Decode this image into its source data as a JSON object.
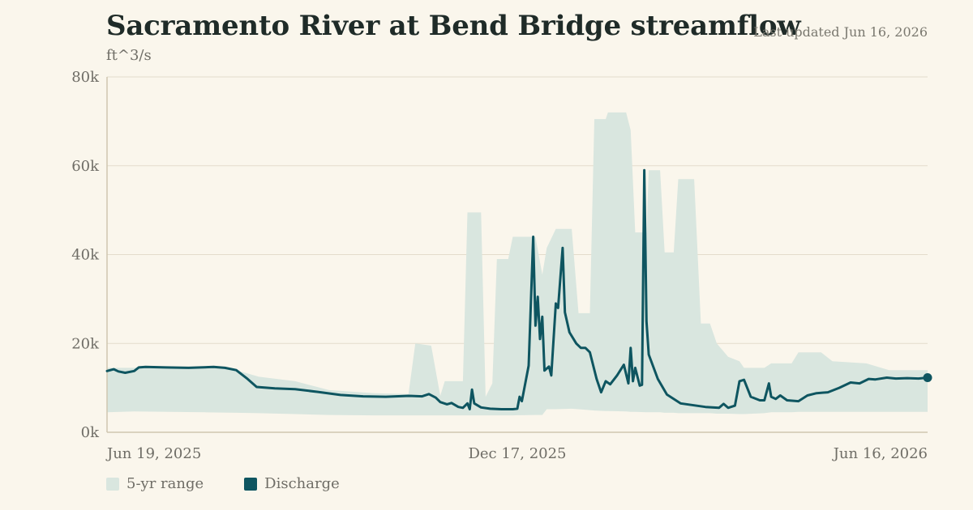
{
  "header": {
    "title": "Sacramento River at Bend Bridge streamflow",
    "updated": "Last updated Jun 16, 2026",
    "unit": "ft^3/s"
  },
  "colors": {
    "band": "#d9e6df",
    "line": "#0e5560",
    "grid": "#e3dccb",
    "axis": "#cfc6b0",
    "text": "#6f6d66",
    "bg": "#faf6ec"
  },
  "legend": {
    "range_label": "5-yr range",
    "discharge_label": "Discharge"
  },
  "chart_data": {
    "type": "area",
    "title": "Sacramento River at Bend Bridge streamflow",
    "ylabel": "ft^3/s",
    "xlabel": "",
    "x_range": [
      "2025-06-19",
      "2026-06-16"
    ],
    "ylim": [
      0,
      80000
    ],
    "yticks": [
      0,
      20000,
      40000,
      60000,
      80000
    ],
    "ytick_labels": [
      "0k",
      "20k",
      "40k",
      "60k",
      "80k"
    ],
    "xticks": [
      "2025-06-19",
      "2025-12-17",
      "2026-06-16"
    ],
    "xtick_labels": [
      "Jun 19, 2025",
      "Dec 17, 2025",
      "Jun 16, 2026"
    ],
    "grid": "horizontal",
    "legend_position": "bottom-left",
    "series": [
      {
        "name": "5-yr range",
        "kind": "band",
        "points": [
          [
            "2025-06-19",
            4500,
            14500
          ],
          [
            "2025-07-01",
            4700,
            14500
          ],
          [
            "2025-08-01",
            4500,
            14800
          ],
          [
            "2025-08-15",
            4400,
            14000
          ],
          [
            "2025-08-25",
            4300,
            12500
          ],
          [
            "2025-09-10",
            4100,
            11500
          ],
          [
            "2025-09-25",
            3900,
            9500
          ],
          [
            "2025-10-15",
            3800,
            8800
          ],
          [
            "2025-10-30",
            3800,
            8600
          ],
          [
            "2025-11-02",
            3800,
            20000
          ],
          [
            "2025-11-09",
            3800,
            19500
          ],
          [
            "2025-11-13",
            3800,
            8200
          ],
          [
            "2025-11-15",
            3800,
            11500
          ],
          [
            "2025-11-23",
            3800,
            11500
          ],
          [
            "2025-11-25",
            3800,
            49500
          ],
          [
            "2025-12-01",
            3800,
            49500
          ],
          [
            "2025-12-03",
            3800,
            8000
          ],
          [
            "2025-12-06",
            3800,
            11000
          ],
          [
            "2025-12-08",
            3800,
            39000
          ],
          [
            "2025-12-13",
            3800,
            39000
          ],
          [
            "2025-12-15",
            3800,
            44000
          ],
          [
            "2025-12-25",
            3900,
            44000
          ],
          [
            "2025-12-28",
            3900,
            35500
          ],
          [
            "2025-12-30",
            5200,
            41500
          ],
          [
            "2026-01-03",
            5200,
            45800
          ],
          [
            "2026-01-10",
            5300,
            45800
          ],
          [
            "2026-01-13",
            5200,
            26800
          ],
          [
            "2026-01-18",
            5000,
            26800
          ],
          [
            "2026-01-20",
            4900,
            70500
          ],
          [
            "2026-01-25",
            4800,
            70500
          ],
          [
            "2026-01-26",
            4800,
            72000
          ],
          [
            "2026-02-03",
            4700,
            72000
          ],
          [
            "2026-02-05",
            4600,
            68000
          ],
          [
            "2026-02-07",
            4600,
            45000
          ],
          [
            "2026-02-12",
            4500,
            45000
          ],
          [
            "2026-02-13",
            4500,
            59000
          ],
          [
            "2026-02-18",
            4500,
            59000
          ],
          [
            "2026-02-20",
            4400,
            40500
          ],
          [
            "2026-02-24",
            4400,
            40500
          ],
          [
            "2026-02-26",
            4300,
            57000
          ],
          [
            "2026-03-05",
            4300,
            57000
          ],
          [
            "2026-03-08",
            4300,
            24500
          ],
          [
            "2026-03-12",
            4300,
            24500
          ],
          [
            "2026-03-15",
            4200,
            20000
          ],
          [
            "2026-03-20",
            4200,
            17000
          ],
          [
            "2026-03-25",
            4100,
            16000
          ],
          [
            "2026-03-27",
            4100,
            14500
          ],
          [
            "2026-04-05",
            4300,
            14500
          ],
          [
            "2026-04-08",
            4500,
            15500
          ],
          [
            "2026-04-17",
            4500,
            15500
          ],
          [
            "2026-04-20",
            4600,
            18000
          ],
          [
            "2026-04-30",
            4600,
            18000
          ],
          [
            "2026-05-05",
            4600,
            16000
          ],
          [
            "2026-05-20",
            4600,
            15500
          ],
          [
            "2026-05-30",
            4600,
            14000
          ],
          [
            "2026-06-16",
            4600,
            14000
          ]
        ]
      },
      {
        "name": "Discharge",
        "kind": "line",
        "points": [
          [
            "2025-06-19",
            13800
          ],
          [
            "2025-06-22",
            14200
          ],
          [
            "2025-06-24",
            13700
          ],
          [
            "2025-06-27",
            13400
          ],
          [
            "2025-07-01",
            13800
          ],
          [
            "2025-07-03",
            14600
          ],
          [
            "2025-07-06",
            14700
          ],
          [
            "2025-07-15",
            14600
          ],
          [
            "2025-07-25",
            14500
          ],
          [
            "2025-08-05",
            14700
          ],
          [
            "2025-08-10",
            14500
          ],
          [
            "2025-08-15",
            14000
          ],
          [
            "2025-08-20",
            12000
          ],
          [
            "2025-08-24",
            10200
          ],
          [
            "2025-09-01",
            9900
          ],
          [
            "2025-09-10",
            9700
          ],
          [
            "2025-09-20",
            9100
          ],
          [
            "2025-09-30",
            8400
          ],
          [
            "2025-10-10",
            8100
          ],
          [
            "2025-10-20",
            8000
          ],
          [
            "2025-10-30",
            8200
          ],
          [
            "2025-11-05",
            8100
          ],
          [
            "2025-11-08",
            8600
          ],
          [
            "2025-11-11",
            7800
          ],
          [
            "2025-11-13",
            6800
          ],
          [
            "2025-11-16",
            6300
          ],
          [
            "2025-11-18",
            6600
          ],
          [
            "2025-11-21",
            5700
          ],
          [
            "2025-11-23",
            5500
          ],
          [
            "2025-11-25",
            6500
          ],
          [
            "2025-11-26",
            5200
          ],
          [
            "2025-11-27",
            9600
          ],
          [
            "2025-11-28",
            6500
          ],
          [
            "2025-12-01",
            5600
          ],
          [
            "2025-12-05",
            5300
          ],
          [
            "2025-12-10",
            5200
          ],
          [
            "2025-12-15",
            5200
          ],
          [
            "2025-12-17",
            5300
          ],
          [
            "2025-12-18",
            8000
          ],
          [
            "2025-12-19",
            7000
          ],
          [
            "2025-12-22",
            15000
          ],
          [
            "2025-12-24",
            44000
          ],
          [
            "2025-12-25",
            24000
          ],
          [
            "2025-12-26",
            30500
          ],
          [
            "2025-12-27",
            21000
          ],
          [
            "2025-12-28",
            26000
          ],
          [
            "2025-12-29",
            13900
          ],
          [
            "2025-12-31",
            14800
          ],
          [
            "2026-01-01",
            12800
          ],
          [
            "2026-01-03",
            29000
          ],
          [
            "2026-01-04",
            28000
          ],
          [
            "2026-01-06",
            41500
          ],
          [
            "2026-01-07",
            27000
          ],
          [
            "2026-01-09",
            22500
          ],
          [
            "2026-01-12",
            20000
          ],
          [
            "2026-01-14",
            19000
          ],
          [
            "2026-01-16",
            19000
          ],
          [
            "2026-01-18",
            18000
          ],
          [
            "2026-01-21",
            12000
          ],
          [
            "2026-01-23",
            9000
          ],
          [
            "2026-01-25",
            11500
          ],
          [
            "2026-01-27",
            10800
          ],
          [
            "2026-01-30",
            12800
          ],
          [
            "2026-02-02",
            15200
          ],
          [
            "2026-02-04",
            11000
          ],
          [
            "2026-02-05",
            19000
          ],
          [
            "2026-02-06",
            11500
          ],
          [
            "2026-02-07",
            14500
          ],
          [
            "2026-02-09",
            10500
          ],
          [
            "2026-02-10",
            10700
          ],
          [
            "2026-02-11",
            59000
          ],
          [
            "2026-02-12",
            25000
          ],
          [
            "2026-02-13",
            17500
          ],
          [
            "2026-02-17",
            12000
          ],
          [
            "2026-02-21",
            8500
          ],
          [
            "2026-02-27",
            6500
          ],
          [
            "2026-03-10",
            5700
          ],
          [
            "2026-03-16",
            5500
          ],
          [
            "2026-03-18",
            6400
          ],
          [
            "2026-03-20",
            5500
          ],
          [
            "2026-03-23",
            6000
          ],
          [
            "2026-03-25",
            11500
          ],
          [
            "2026-03-27",
            11800
          ],
          [
            "2026-03-30",
            8000
          ],
          [
            "2026-04-03",
            7200
          ],
          [
            "2026-04-05",
            7200
          ],
          [
            "2026-04-07",
            11000
          ],
          [
            "2026-04-08",
            8000
          ],
          [
            "2026-04-10",
            7500
          ],
          [
            "2026-04-12",
            8300
          ],
          [
            "2026-04-15",
            7200
          ],
          [
            "2026-04-20",
            7000
          ],
          [
            "2026-04-24",
            8300
          ],
          [
            "2026-04-28",
            8800
          ],
          [
            "2026-05-03",
            9000
          ],
          [
            "2026-05-08",
            10000
          ],
          [
            "2026-05-13",
            11200
          ],
          [
            "2026-05-17",
            11000
          ],
          [
            "2026-05-21",
            12000
          ],
          [
            "2026-05-24",
            11900
          ],
          [
            "2026-05-29",
            12300
          ],
          [
            "2026-06-02",
            12100
          ],
          [
            "2026-06-07",
            12200
          ],
          [
            "2026-06-12",
            12100
          ],
          [
            "2026-06-16",
            12300
          ]
        ]
      }
    ]
  }
}
